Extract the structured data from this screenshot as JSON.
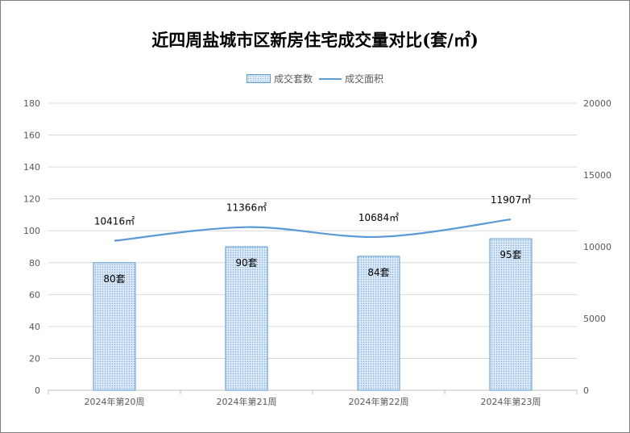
{
  "chart_data": {
    "type": "bar",
    "title": "近四周盐城市区新房住宅成交量对比(套/㎡)",
    "categories": [
      "2024年第20周",
      "2024年第21周",
      "2024年第22周",
      "2024年第23周"
    ],
    "series": [
      {
        "name": "成交套数",
        "type": "bar",
        "axis": "left",
        "values": [
          80,
          90,
          84,
          95
        ],
        "labels": [
          "80套",
          "90套",
          "84套",
          "95套"
        ],
        "color": "#5b9bd5"
      },
      {
        "name": "成交面积",
        "type": "line",
        "axis": "right",
        "values": [
          10416,
          11366,
          10684,
          11907
        ],
        "labels": [
          "10416㎡",
          "11366㎡",
          "10684㎡",
          "11907㎡"
        ],
        "color": "#5b9bd5"
      }
    ],
    "y_left": {
      "min": 0,
      "max": 180,
      "ticks": [
        "0",
        "20",
        "40",
        "60",
        "80",
        "100",
        "120",
        "140",
        "160",
        "180"
      ]
    },
    "y_right": {
      "min": 0,
      "max": 20000,
      "ticks": [
        "0",
        "5000",
        "10000",
        "15000",
        "20000"
      ]
    },
    "grid": true,
    "legend_position": "top"
  }
}
